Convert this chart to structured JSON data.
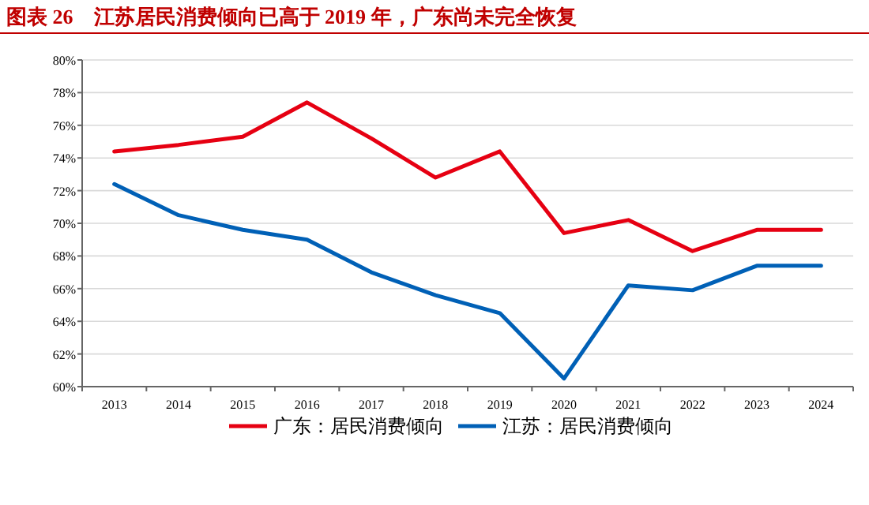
{
  "chart_data": {
    "type": "line",
    "title": "图表 26　江苏居民消费倾向已高于 2019 年，广东尚未完全恢复",
    "categories": [
      "2013",
      "2014",
      "2015",
      "2016",
      "2017",
      "2018",
      "2019",
      "2020",
      "2021",
      "2022",
      "2023",
      "2024"
    ],
    "series": [
      {
        "name": "广东：居民消费倾向",
        "color": "#e60012",
        "values": [
          74.4,
          74.8,
          75.3,
          77.4,
          75.2,
          72.8,
          74.4,
          69.4,
          70.2,
          68.3,
          69.6,
          69.6
        ]
      },
      {
        "name": "江苏：居民消费倾向",
        "color": "#0060b6",
        "values": [
          72.4,
          70.5,
          69.6,
          69.0,
          67.0,
          65.6,
          64.5,
          60.5,
          66.2,
          65.9,
          67.4,
          67.4
        ]
      }
    ],
    "ylim": [
      60,
      80
    ],
    "yticks": [
      {
        "value": 60,
        "label": "60%"
      },
      {
        "value": 62,
        "label": "62%"
      },
      {
        "value": 64,
        "label": "64%"
      },
      {
        "value": 66,
        "label": "66%"
      },
      {
        "value": 68,
        "label": "68%"
      },
      {
        "value": 70,
        "label": "70%"
      },
      {
        "value": 72,
        "label": "72%"
      },
      {
        "value": 74,
        "label": "74%"
      },
      {
        "value": 76,
        "label": "76%"
      },
      {
        "value": 78,
        "label": "78%"
      },
      {
        "value": 80,
        "label": "80%"
      }
    ],
    "grid": "y",
    "legend": "bottom",
    "line_style": "solid",
    "marker": "none"
  }
}
